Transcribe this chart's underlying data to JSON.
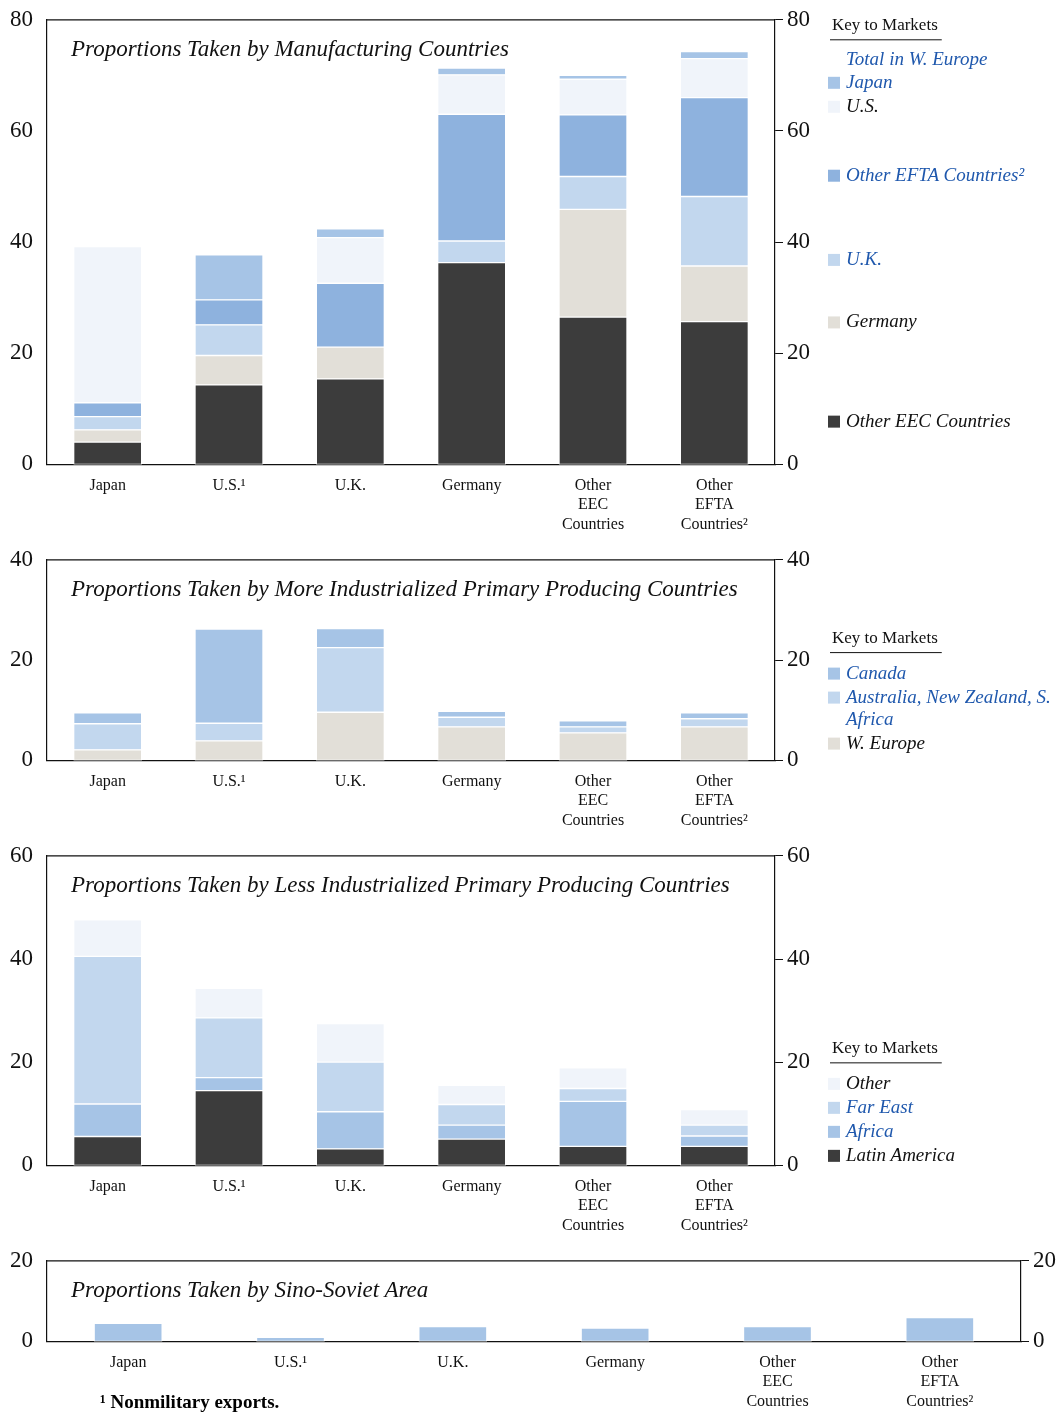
{
  "chart_data": [
    {
      "type": "bar",
      "title": "Proportions Taken by Manufacturing Countries",
      "categories": [
        "Japan",
        "U.S.¹",
        "U.K.",
        "Germany",
        "Other EEC Countries",
        "Other EFTA Countries²"
      ],
      "stacked": true,
      "ylim": [
        0,
        80
      ],
      "yticks": [
        0,
        20,
        40,
        60,
        80
      ],
      "y2lim": [
        0,
        80
      ],
      "y2ticks": [
        0,
        20,
        40,
        60,
        80
      ],
      "legend": "right",
      "legend_title": "Key to Markets",
      "series": [
        {
          "name": "Other EEC Countries",
          "color": "#3c3c3c",
          "values": [
            4.0,
            14.3,
            15.4,
            36.3,
            26.5,
            25.7
          ]
        },
        {
          "name": "Germany",
          "color": "#e2dfd8",
          "values": [
            2.2,
            5.3,
            5.7,
            0,
            19.4,
            10.0
          ]
        },
        {
          "name": "U.K.",
          "color": "#c2d7ee",
          "values": [
            2.4,
            5.5,
            0,
            3.9,
            5.9,
            12.5
          ]
        },
        {
          "name": "Other EFTA Countries²",
          "color": "#8eb2de",
          "values": [
            2.5,
            4.5,
            11.5,
            22.8,
            11.1,
            17.8
          ]
        },
        {
          "name": "U.S.",
          "color": "#f0f4fa",
          "values": [
            28.1,
            0,
            8.2,
            7.1,
            6.4,
            7.0
          ]
        },
        {
          "name": "Japan",
          "color": "#a6c4e6",
          "values": [
            0,
            8.1,
            1.6,
            1.2,
            0.7,
            1.3
          ]
        }
      ],
      "annotations": [
        "Total in W. Europe"
      ]
    },
    {
      "type": "bar",
      "title": "Proportions Taken by More Industrialized Primary Producing Countries",
      "categories": [
        "Japan",
        "U.S.¹",
        "U.K.",
        "Germany",
        "Other EEC Countries",
        "Other EFTA Countries²"
      ],
      "stacked": true,
      "ylim": [
        0,
        40
      ],
      "yticks": [
        0,
        20,
        40
      ],
      "y2lim": [
        0,
        40
      ],
      "y2ticks": [
        0,
        20,
        40
      ],
      "legend": "right",
      "legend_title": "Key to Markets",
      "series": [
        {
          "name": "W. Europe",
          "color": "#e2dfd8",
          "values": [
            2.1,
            3.9,
            9.6,
            6.7,
            5.5,
            6.7
          ]
        },
        {
          "name": "Australia, New Zealand, S. Africa",
          "color": "#c2d7ee",
          "values": [
            5.2,
            3.5,
            12.9,
            1.9,
            1.2,
            1.6
          ]
        },
        {
          "name": "Canada",
          "color": "#a6c4e6",
          "values": [
            2.2,
            18.8,
            3.8,
            1.2,
            1.2,
            1.2
          ]
        }
      ]
    },
    {
      "type": "bar",
      "title": "Proportions Taken by Less Industrialized Primary Producing Countries",
      "categories": [
        "Japan",
        "U.S.¹",
        "U.K.",
        "Germany",
        "Other EEC Countries",
        "Other EFTA Countries²"
      ],
      "stacked": true,
      "ylim": [
        0,
        60
      ],
      "yticks": [
        0,
        20,
        40,
        60
      ],
      "y2lim": [
        0,
        60
      ],
      "y2ticks": [
        0,
        20,
        40,
        60
      ],
      "legend": "right",
      "legend_title": "Key to Markets",
      "series": [
        {
          "name": "Latin America",
          "color": "#3c3c3c",
          "values": [
            5.6,
            14.5,
            3.2,
            5.1,
            3.7,
            3.7
          ]
        },
        {
          "name": "Africa",
          "color": "#a6c4e6",
          "values": [
            6.3,
            2.5,
            7.2,
            2.7,
            8.7,
            2.0
          ]
        },
        {
          "name": "Far East",
          "color": "#c2d7ee",
          "values": [
            28.6,
            11.6,
            9.6,
            4.0,
            2.5,
            2.1
          ]
        },
        {
          "name": "Other",
          "color": "#f0f4fa",
          "values": [
            7.1,
            5.7,
            7.5,
            3.7,
            4.0,
            3.0
          ]
        }
      ]
    },
    {
      "type": "bar",
      "title": "Proportions Taken by Sino-Soviet Area",
      "categories": [
        "Japan",
        "U.S.¹",
        "U.K.",
        "Germany",
        "Other EEC Countries",
        "Other EFTA Countries²"
      ],
      "ylim": [
        0,
        20
      ],
      "yticks": [
        0,
        20
      ],
      "y2lim": [
        0,
        20
      ],
      "y2ticks": [
        0,
        20
      ],
      "color": "#a6c4e6",
      "values": [
        4.5,
        1.0,
        3.7,
        3.3,
        3.7,
        5.9
      ],
      "annotations": [
        "¹ Nonmilitary exports."
      ]
    }
  ]
}
